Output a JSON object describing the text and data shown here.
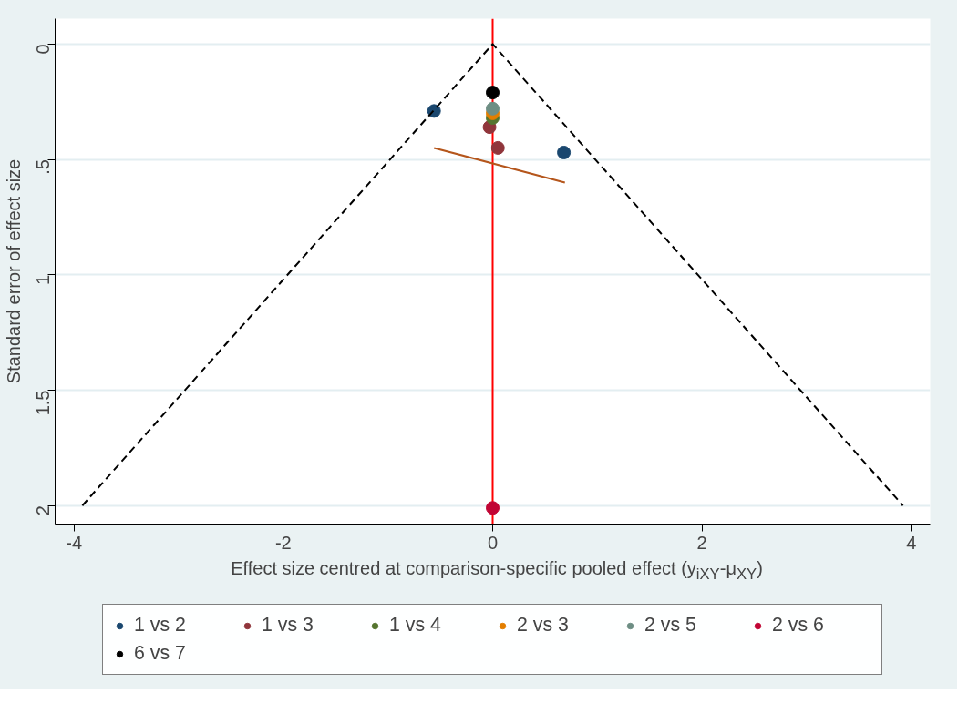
{
  "chart_data": {
    "type": "scatter",
    "xlabel": "Effect size centred at comparison-specific pooled effect (y$_{iXY}$-μ$_{XY}$)",
    "ylabel": "Standard error of effect size",
    "xlim": [
      -4.18,
      4.18
    ],
    "ylim": [
      2.08,
      -0.11
    ],
    "xticks": [
      -4,
      -2,
      0,
      2,
      4
    ],
    "yticks": [
      0,
      {
        "value": 0.5,
        "label": ".5"
      },
      1,
      1.5,
      2
    ],
    "grid": "y",
    "legend": "bottom",
    "marker": "circle",
    "ref_lines": [
      {
        "axis": "x",
        "value": 0,
        "color": "#ff0000"
      }
    ],
    "series": [
      {
        "name": "1 vs 2",
        "color": "#1a476f",
        "x": [
          -0.56,
          0.68
        ],
        "values": [
          0.29,
          0.47
        ]
      },
      {
        "name": "1 vs 3",
        "color": "#90353b",
        "x": [
          -0.03,
          0.05
        ],
        "values": [
          0.36,
          0.45
        ]
      },
      {
        "name": "1 vs 4",
        "color": "#55752f",
        "x": [
          0
        ],
        "values": [
          0.32
        ]
      },
      {
        "name": "2 vs 3",
        "color": "#e37e00",
        "x": [
          0
        ],
        "values": [
          0.3
        ]
      },
      {
        "name": "2 vs 5",
        "color": "#6e8e84",
        "x": [
          0
        ],
        "values": [
          0.28
        ]
      },
      {
        "name": "2 vs 6",
        "color": "#c10534",
        "x": [
          0
        ],
        "values": [
          2.01
        ]
      },
      {
        "name": "6 vs 7",
        "color": "#000000",
        "x": [
          0
        ],
        "values": [
          0.21
        ]
      },
      {
        "type": "line",
        "marker": "none",
        "color": "#b5561c",
        "line_style": "solid",
        "x": [
          -0.56,
          0.69
        ],
        "values": [
          0.45,
          0.6
        ]
      },
      {
        "type": "line",
        "marker": "none",
        "color": "#000000",
        "line_style": "dashed",
        "x": [
          -3.92,
          0,
          3.92
        ],
        "values": [
          2,
          0,
          2
        ]
      }
    ]
  }
}
